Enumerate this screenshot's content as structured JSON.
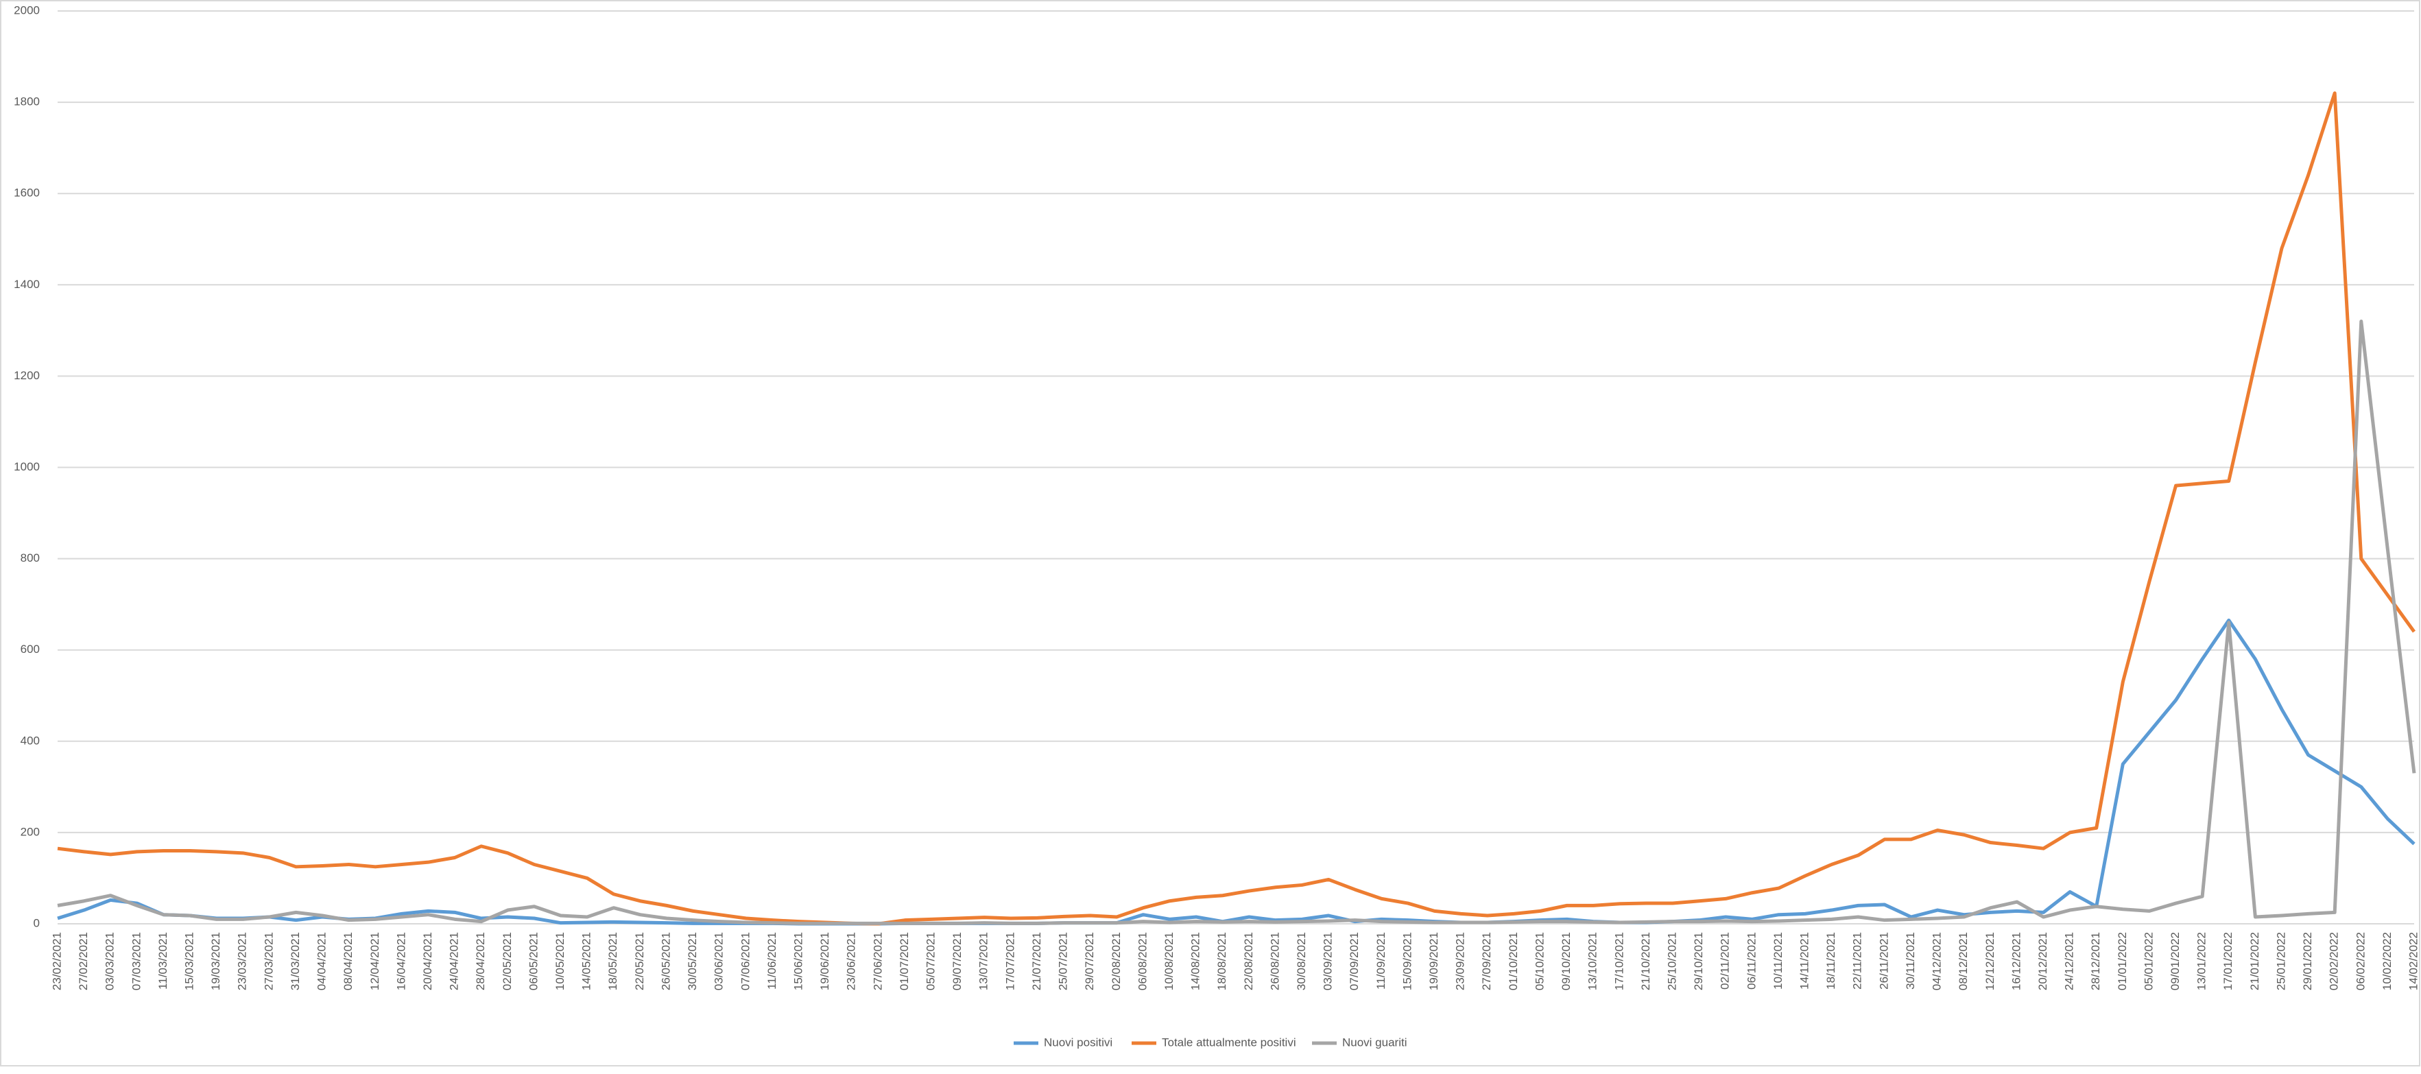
{
  "chart_data": {
    "type": "line",
    "categories": [
      "23/02/2021",
      "27/02/2021",
      "03/03/2021",
      "07/03/2021",
      "11/03/2021",
      "15/03/2021",
      "19/03/2021",
      "23/03/2021",
      "27/03/2021",
      "31/03/2021",
      "04/04/2021",
      "08/04/2021",
      "12/04/2021",
      "16/04/2021",
      "20/04/2021",
      "24/04/2021",
      "28/04/2021",
      "02/05/2021",
      "06/05/2021",
      "10/05/2021",
      "14/05/2021",
      "18/05/2021",
      "22/05/2021",
      "26/05/2021",
      "30/05/2021",
      "03/06/2021",
      "07/06/2021",
      "11/06/2021",
      "15/06/2021",
      "19/06/2021",
      "23/06/2021",
      "27/06/2021",
      "01/07/2021",
      "05/07/2021",
      "09/07/2021",
      "13/07/2021",
      "17/07/2021",
      "21/07/2021",
      "25/07/2021",
      "29/07/2021",
      "02/08/2021",
      "06/08/2021",
      "10/08/2021",
      "14/08/2021",
      "18/08/2021",
      "22/08/2021",
      "26/08/2021",
      "30/08/2021",
      "03/09/2021",
      "07/09/2021",
      "11/09/2021",
      "15/09/2021",
      "19/09/2021",
      "23/09/2021",
      "27/09/2021",
      "01/10/2021",
      "05/10/2021",
      "09/10/2021",
      "13/10/2021",
      "17/10/2021",
      "21/10/2021",
      "25/10/2021",
      "29/10/2021",
      "02/11/2021",
      "06/11/2021",
      "10/11/2021",
      "14/11/2021",
      "18/11/2021",
      "22/11/2021",
      "26/11/2021",
      "30/11/2021",
      "04/12/2021",
      "08/12/2021",
      "12/12/2021",
      "16/12/2021",
      "20/12/2021",
      "24/12/2021",
      "28/12/2021",
      "01/01/2022",
      "05/01/2022",
      "09/01/2022",
      "13/01/2022",
      "17/01/2022",
      "21/01/2022",
      "25/01/2022",
      "29/01/2022",
      "02/02/2022",
      "06/02/2022",
      "10/02/2022",
      "14/02/2022"
    ],
    "series": [
      {
        "name": "Nuovi positivi",
        "color": "#5b9bd5",
        "values": [
          12,
          30,
          52,
          45,
          20,
          18,
          12,
          12,
          15,
          8,
          15,
          10,
          12,
          22,
          28,
          25,
          12,
          15,
          12,
          2,
          3,
          4,
          3,
          2,
          1,
          1,
          1,
          1,
          0,
          0,
          0,
          0,
          1,
          1,
          1,
          1,
          1,
          1,
          2,
          2,
          2,
          20,
          10,
          15,
          5,
          15,
          8,
          10,
          18,
          5,
          10,
          8,
          5,
          3,
          3,
          5,
          8,
          10,
          5,
          3,
          3,
          5,
          8,
          15,
          10,
          20,
          22,
          30,
          40,
          42,
          15,
          30,
          20,
          25,
          28,
          25,
          70,
          38,
          350,
          420,
          490,
          580,
          665,
          580,
          470,
          370,
          335,
          300,
          230,
          175
        ]
      },
      {
        "name": "Totale attualmente positivi",
        "color": "#ed7d31",
        "values": [
          165,
          158,
          152,
          158,
          160,
          160,
          158,
          155,
          145,
          125,
          127,
          130,
          125,
          130,
          135,
          145,
          170,
          155,
          130,
          115,
          100,
          65,
          50,
          40,
          28,
          20,
          12,
          8,
          5,
          3,
          1,
          0,
          8,
          10,
          12,
          14,
          12,
          13,
          16,
          18,
          15,
          35,
          50,
          58,
          62,
          72,
          80,
          85,
          97,
          75,
          55,
          45,
          28,
          22,
          18,
          22,
          28,
          40,
          40,
          44,
          45,
          45,
          50,
          55,
          68,
          78,
          105,
          130,
          150,
          185,
          185,
          205,
          195,
          178,
          172,
          165,
          200,
          210,
          530,
          750,
          960,
          965,
          970,
          1230,
          1480,
          1640,
          1820,
          800,
          720,
          640
        ]
      },
      {
        "name": "Nuovi guariti",
        "color": "#a5a5a5",
        "values": [
          40,
          50,
          62,
          40,
          20,
          18,
          10,
          10,
          15,
          25,
          18,
          8,
          10,
          15,
          20,
          10,
          5,
          30,
          38,
          18,
          15,
          35,
          20,
          12,
          8,
          5,
          3,
          2,
          1,
          1,
          1,
          1,
          1,
          1,
          1,
          2,
          1,
          1,
          2,
          2,
          2,
          5,
          3,
          5,
          4,
          5,
          4,
          5,
          6,
          8,
          5,
          4,
          3,
          3,
          3,
          4,
          5,
          5,
          4,
          3,
          4,
          5,
          5,
          6,
          5,
          6,
          8,
          10,
          15,
          8,
          10,
          12,
          15,
          35,
          48,
          15,
          30,
          38,
          32,
          28,
          45,
          60,
          660,
          15,
          18,
          22,
          25,
          1320,
          820,
          330
        ]
      }
    ],
    "ylim": [
      0,
      2000
    ],
    "yticks": [
      0,
      200,
      400,
      600,
      800,
      1000,
      1200,
      1400,
      1600,
      1800,
      2000
    ],
    "grid": true,
    "legend": "bottom"
  }
}
